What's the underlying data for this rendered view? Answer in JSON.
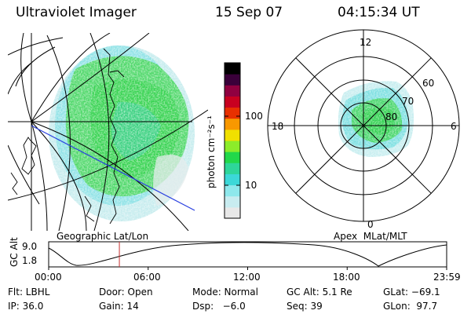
{
  "header": {
    "title": "Ultraviolet Imager",
    "date": "15 Sep 07",
    "time": "04:15:34 UT"
  },
  "left_panel": {
    "caption": "Geographic Lat/Lon"
  },
  "right_panel": {
    "caption": "Apex  MLat/MLT",
    "mlt_labels": {
      "top": "12",
      "left": "18",
      "right": "6",
      "bottom": "0"
    },
    "lat_labels": [
      "60",
      "70",
      "80"
    ]
  },
  "colorbar": {
    "unit_label": "photon cm⁻²s⁻¹",
    "ticks": [
      "100",
      "10"
    ],
    "colors": [
      "#e8e8e8",
      "#c8ecf0",
      "#8ee8ec",
      "#3cd8d8",
      "#2ed69a",
      "#22d84a",
      "#8cec2a",
      "#f0e000",
      "#f89800",
      "#e83000",
      "#c80020",
      "#900040",
      "#3a003a",
      "#000000"
    ]
  },
  "altitude_plot": {
    "y_label": "GC Alt",
    "y_ticks": [
      "9.0",
      "1.8"
    ],
    "x_ticks": [
      "00:00",
      "06:00",
      "12:00",
      "18:00",
      "23:59"
    ],
    "marker_time_hours": 4.26,
    "marker_color": "#c83030"
  },
  "footer": {
    "row1": [
      "Flt: LBHL",
      "Door: Open",
      "Mode: Normal",
      "GC Alt: 5.1 Re",
      "GLat: −69.1"
    ],
    "row2": [
      "IP: 36.0",
      "Gain: 14",
      "Dsp:   −6.0",
      "Seq: 39",
      "GLon:  97.7"
    ]
  }
}
